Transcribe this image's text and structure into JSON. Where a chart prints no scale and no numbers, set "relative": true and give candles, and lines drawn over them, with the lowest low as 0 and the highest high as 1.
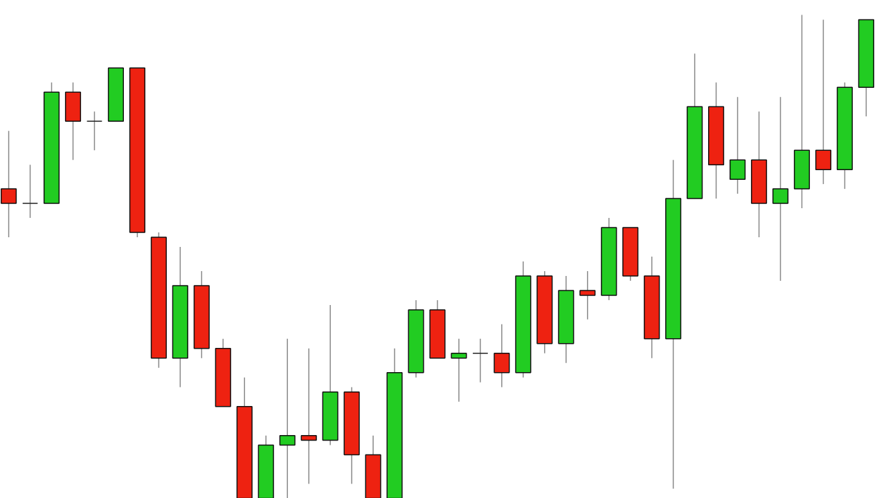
{
  "chart_data": {
    "type": "candlestick",
    "relative": true,
    "categories": [
      null,
      null,
      null,
      null,
      null,
      null,
      null,
      null,
      null,
      null,
      null,
      null,
      null,
      null,
      null,
      null,
      null,
      null,
      null,
      null,
      null,
      null,
      null,
      null,
      null,
      null,
      null,
      null,
      null,
      null,
      null,
      null,
      null,
      null,
      null,
      null,
      null,
      null,
      null,
      null,
      null
    ],
    "ohlc": [
      [
        0.64,
        0.76,
        0.54,
        0.61
      ],
      [
        0.61,
        0.69,
        0.58,
        0.61
      ],
      [
        0.61,
        0.86,
        0.61,
        0.84
      ],
      [
        0.84,
        0.86,
        0.7,
        0.78
      ],
      [
        0.78,
        0.8,
        0.72,
        0.78
      ],
      [
        0.78,
        0.89,
        0.78,
        0.89
      ],
      [
        0.89,
        0.89,
        0.54,
        0.55
      ],
      [
        0.54,
        0.55,
        0.27,
        0.29
      ],
      [
        0.29,
        0.52,
        0.23,
        0.44
      ],
      [
        0.44,
        0.47,
        0.29,
        0.31
      ],
      [
        0.31,
        0.33,
        0.19,
        0.19
      ],
      [
        0.19,
        0.25,
        0,
        0
      ],
      [
        0,
        0.13,
        0,
        0.11
      ],
      [
        0.11,
        0.33,
        0,
        0.13
      ],
      [
        0.13,
        0.31,
        0.03,
        0.12
      ],
      [
        0.12,
        0.4,
        0.11,
        0.22
      ],
      [
        0.22,
        0.23,
        0.03,
        0.09
      ],
      [
        0.09,
        0.13,
        0,
        0
      ],
      [
        0,
        0.31,
        0,
        0.26
      ],
      [
        0.26,
        0.41,
        0.25,
        0.39
      ],
      [
        0.39,
        0.41,
        0.29,
        0.29
      ],
      [
        0.29,
        0.33,
        0.2,
        0.3
      ],
      [
        0.3,
        0.33,
        0.24,
        0.3
      ],
      [
        0.3,
        0.36,
        0.23,
        0.26
      ],
      [
        0.26,
        0.49,
        0.25,
        0.46
      ],
      [
        0.46,
        0.47,
        0.3,
        0.32
      ],
      [
        0.32,
        0.46,
        0.28,
        0.43
      ],
      [
        0.43,
        0.47,
        0.37,
        0.42
      ],
      [
        0.42,
        0.58,
        0.41,
        0.56
      ],
      [
        0.56,
        0.56,
        0.45,
        0.46
      ],
      [
        0.46,
        0.5,
        0.29,
        0.33
      ],
      [
        0.33,
        0.7,
        0.02,
        0.62
      ],
      [
        0.62,
        0.92,
        0.62,
        0.81
      ],
      [
        0.81,
        0.86,
        0.62,
        0.69
      ],
      [
        0.66,
        0.83,
        0.63,
        0.7
      ],
      [
        0.7,
        0.8,
        0.54,
        0.61
      ],
      [
        0.61,
        0.83,
        0.45,
        0.64
      ],
      [
        0.64,
        1.0,
        0.6,
        0.72
      ],
      [
        0.72,
        0.99,
        0.65,
        0.68
      ],
      [
        0.68,
        0.86,
        0.64,
        0.85
      ],
      [
        0.85,
        0.99,
        0.79,
        0.99
      ]
    ],
    "colors": [
      "#ee2211",
      "#222222",
      "#22cc22",
      "#ee2211",
      "#222222",
      "#22cc22",
      "#ee2211",
      "#ee2211",
      "#22cc22",
      "#ee2211",
      "#ee2211",
      "#ee2211",
      "#22cc22",
      "#22cc22",
      "#ee2211",
      "#22cc22",
      "#ee2211",
      "#ee2211",
      "#22cc22",
      "#22cc22",
      "#ee2211",
      "#22cc22",
      "#222222",
      "#ee2211",
      "#22cc22",
      "#ee2211",
      "#22cc22",
      "#ee2211",
      "#22cc22",
      "#ee2211",
      "#ee2211",
      "#22cc22",
      "#22cc22",
      "#ee2211",
      "#22cc22",
      "#ee2211",
      "#22cc22",
      "#22cc22",
      "#ee2211",
      "#22cc22",
      "#22cc22"
    ]
  }
}
